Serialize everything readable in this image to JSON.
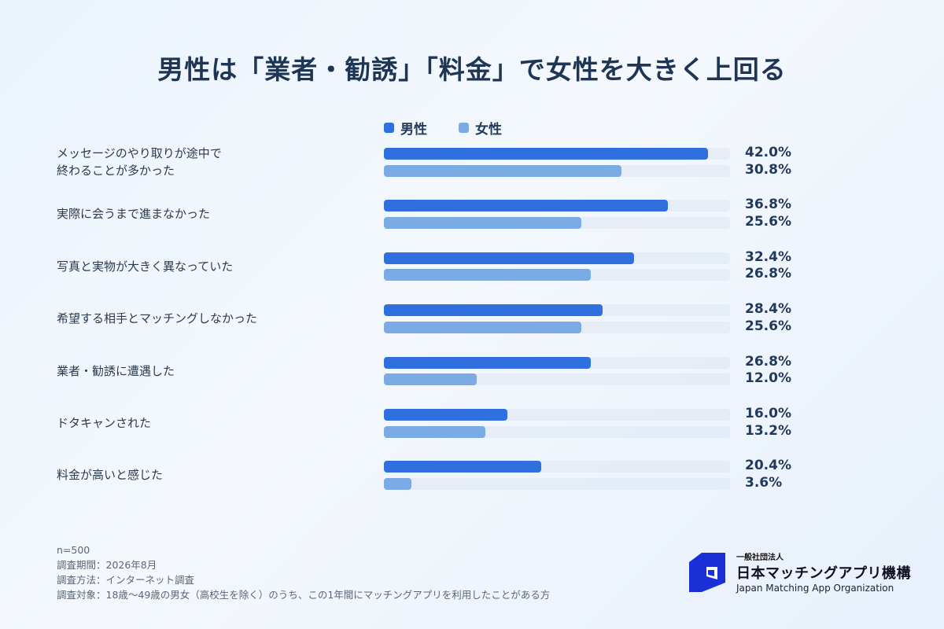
{
  "title": "男性は「業者・勧誘」「料金」で女性を大きく上回る",
  "colors": {
    "male": "#2f6fde",
    "female": "#7aabe5"
  },
  "chart_data": {
    "type": "bar",
    "orientation": "horizontal",
    "categories": [
      "メッセージのやり取りが途中で\n終わることが多かった",
      "実際に会うまで進まなかった",
      "写真と実物が大きく異なっていた",
      "希望する相手とマッチングしなかった",
      "業者・勧誘に遭遇した",
      "ドタキャンされた",
      "料金が高いと感じた"
    ],
    "series": [
      {
        "name": "男性",
        "values": [
          42.0,
          36.8,
          32.4,
          28.4,
          26.8,
          16.0,
          20.4
        ],
        "labels": [
          "42.0%",
          "36.8%",
          "32.4%",
          "28.4%",
          "26.8%",
          "16.0%",
          "20.4%"
        ]
      },
      {
        "name": "女性",
        "values": [
          30.8,
          25.6,
          26.8,
          25.6,
          12.0,
          13.2,
          3.6
        ],
        "labels": [
          "30.8%",
          "25.6%",
          "26.8%",
          "25.6%",
          "12.0%",
          "13.2%",
          "3.6%"
        ]
      }
    ],
    "xlim": [
      0,
      45
    ],
    "legend": "top",
    "grid": false
  },
  "notes": [
    "n=500",
    "調査期間：2026年8月",
    "調査方法：インターネット調査",
    "調査対象：18歳〜49歳の男女（高校生を除く）のうち、この1年間にマッチングアプリを利用したことがある方"
  ],
  "org": {
    "small": "一般社団法人",
    "name": "日本マッチングアプリ機構",
    "en": "Japan Matching App Organization"
  }
}
